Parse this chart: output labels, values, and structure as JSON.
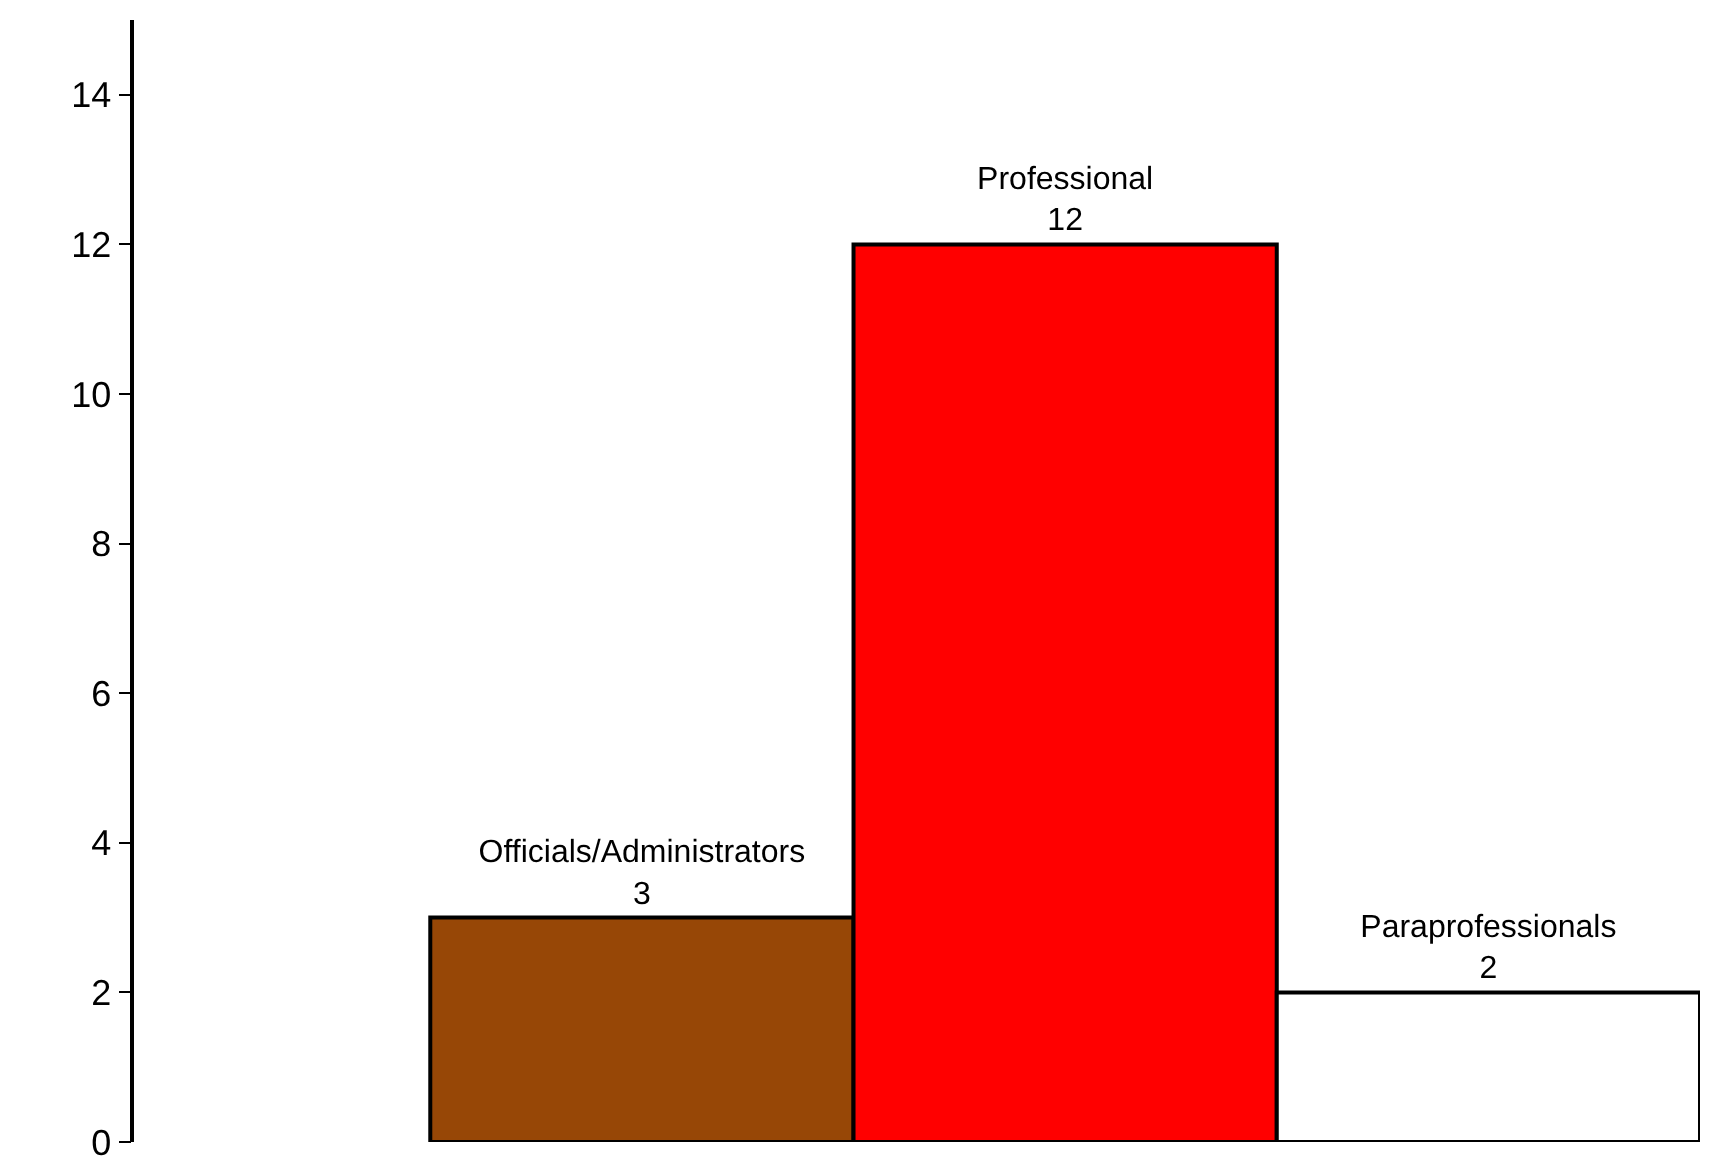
{
  "chart_data": {
    "type": "bar",
    "categories": [
      "Officials/Administrators",
      "Professional",
      "Paraprofessionals"
    ],
    "values": [
      3,
      12,
      2
    ],
    "colors": [
      "#974706",
      "#ff0000",
      "#ffffff"
    ],
    "ylim": [
      0,
      15
    ],
    "yticks": [
      0,
      2,
      4,
      6,
      8,
      10,
      12,
      14
    ],
    "grid": false,
    "tick_labels": "y",
    "data_labels": true
  }
}
